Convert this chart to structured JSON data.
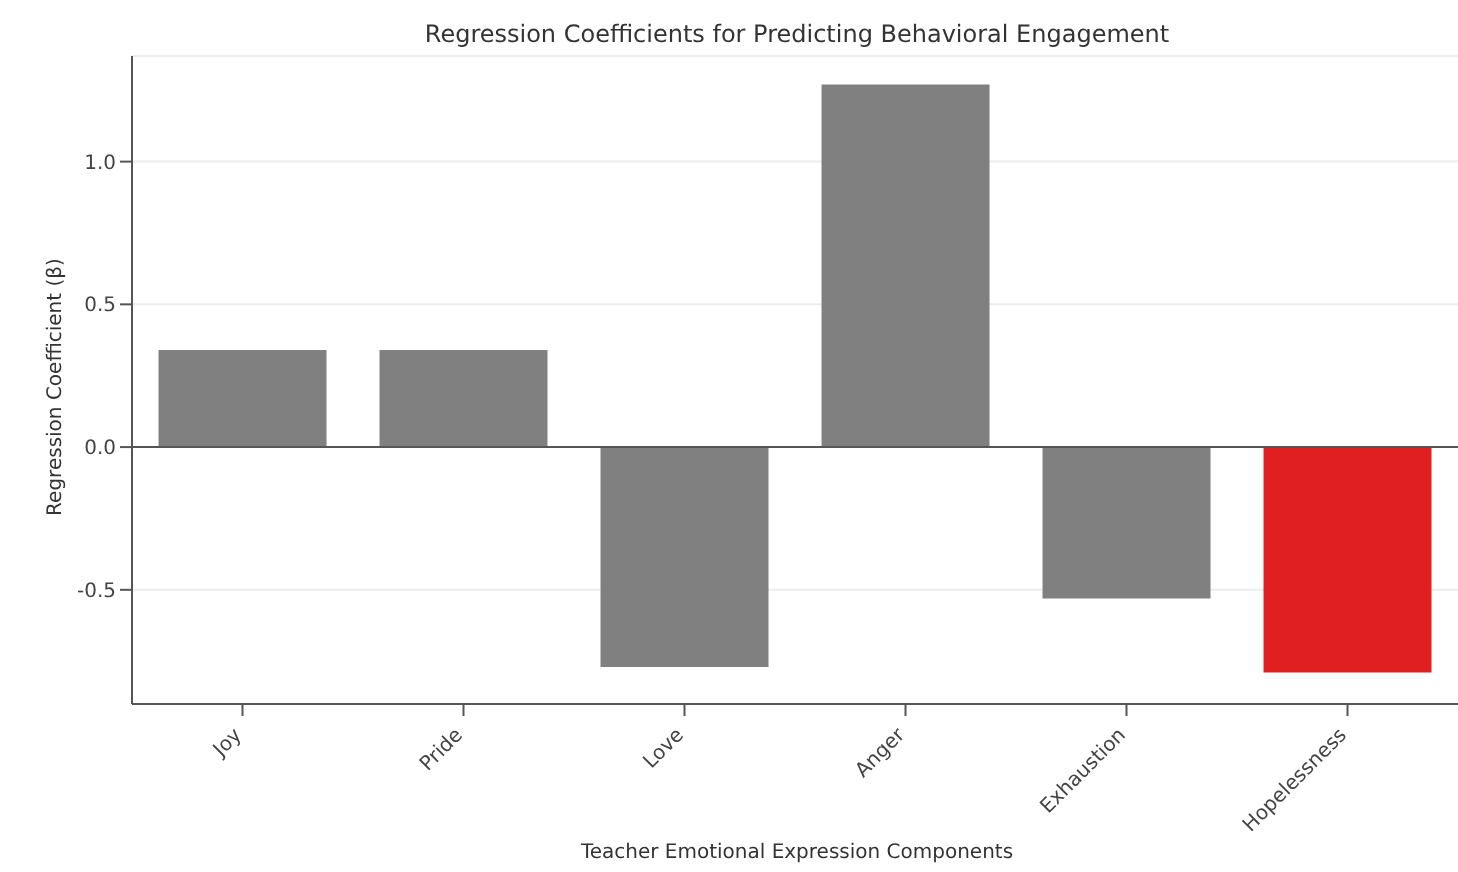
{
  "chart_data": {
    "type": "bar",
    "title": "Regression Coefficients for Predicting Behavioral Engagement",
    "xlabel": "Teacher Emotional Expression Components",
    "ylabel": "Regression Coefficient (β)",
    "categories": [
      "Joy",
      "Pride",
      "Love",
      "Anger",
      "Exhaustion",
      "Hopelessness"
    ],
    "values": [
      0.34,
      0.34,
      -0.77,
      1.27,
      -0.53,
      -0.79
    ],
    "colors": [
      "#808080",
      "#808080",
      "#808080",
      "#808080",
      "#808080",
      "#e02020"
    ],
    "ylim": [
      -0.9,
      1.37
    ],
    "yticks": [
      -0.5,
      {
        "value": 0,
        "label": "0.0"
      },
      0.5,
      {
        "value": 1,
        "label": "1.0"
      }
    ],
    "grid": "y",
    "ref_lines": [
      {
        "axis": "y",
        "value": 0,
        "color": "#555555"
      }
    ]
  }
}
